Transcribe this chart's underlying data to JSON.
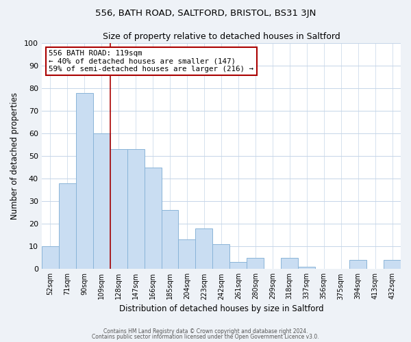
{
  "title": "556, BATH ROAD, SALTFORD, BRISTOL, BS31 3JN",
  "subtitle": "Size of property relative to detached houses in Saltford",
  "xlabel": "Distribution of detached houses by size in Saltford",
  "ylabel": "Number of detached properties",
  "bar_labels": [
    "52sqm",
    "71sqm",
    "90sqm",
    "109sqm",
    "128sqm",
    "147sqm",
    "166sqm",
    "185sqm",
    "204sqm",
    "223sqm",
    "242sqm",
    "261sqm",
    "280sqm",
    "299sqm",
    "318sqm",
    "337sqm",
    "356sqm",
    "375sqm",
    "394sqm",
    "413sqm",
    "432sqm"
  ],
  "bar_values": [
    10,
    38,
    78,
    60,
    53,
    53,
    45,
    26,
    13,
    18,
    11,
    3,
    5,
    0,
    5,
    1,
    0,
    0,
    4,
    0,
    4
  ],
  "bar_color": "#c9ddf2",
  "bar_edge_color": "#8ab4d8",
  "ylim": [
    0,
    100
  ],
  "yticks": [
    0,
    10,
    20,
    30,
    40,
    50,
    60,
    70,
    80,
    90,
    100
  ],
  "property_line_color": "#aa0000",
  "annotation_text": "556 BATH ROAD: 119sqm\n← 40% of detached houses are smaller (147)\n59% of semi-detached houses are larger (216) →",
  "footer_line1": "Contains HM Land Registry data © Crown copyright and database right 2024.",
  "footer_line2": "Contains public sector information licensed under the Open Government Licence v3.0.",
  "background_color": "#eef2f7",
  "plot_background_color": "#ffffff",
  "grid_color": "#c5d5e8"
}
